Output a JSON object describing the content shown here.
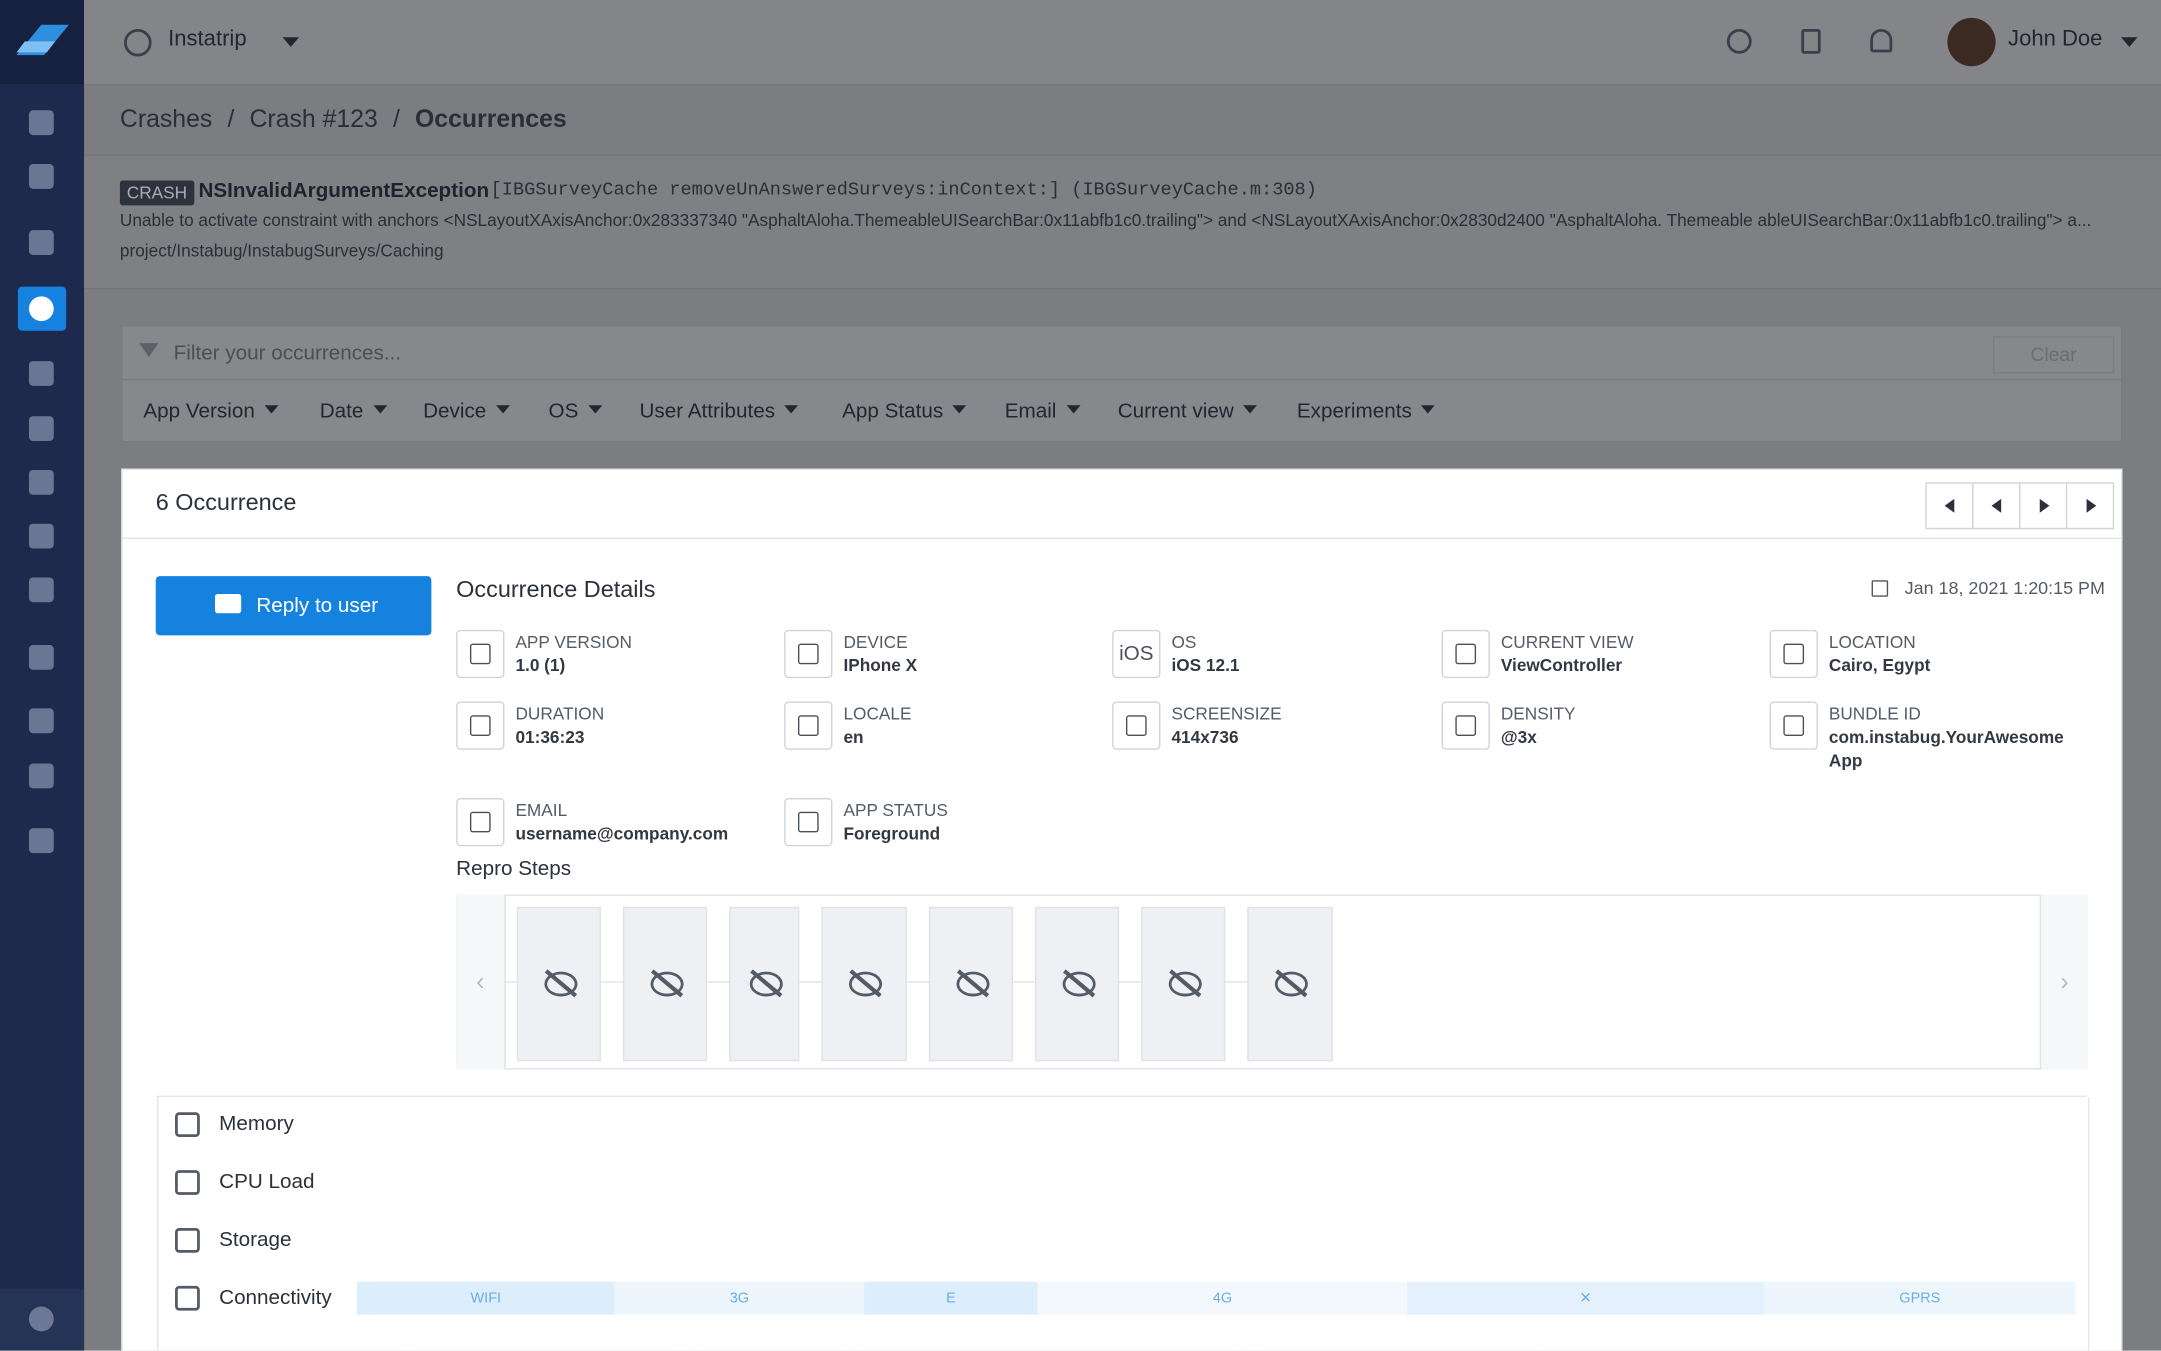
{
  "header": {
    "app": "Instatrip",
    "user": "John Doe"
  },
  "breadcrumb": [
    "Crashes",
    "/",
    "Crash #123",
    "/",
    "Occurrences"
  ],
  "crash": {
    "badge": "CRASH",
    "name": "NSInvalidArgumentException",
    "separator": "·",
    "method": "[IBGSurveyCache removeUnAnsweredSurveys:inContext:] (IBGSurveyCache.m:308)",
    "message": "Unable to activate constraint with anchors <NSLayoutXAxisAnchor:0x283337340 \"AsphaltAloha.ThemeableUISearchBar:0x11abfb1c0.trailing\"> and <NSLayoutXAxisAnchor:0x2830d2400 \"AsphaltAloha. Themeable ableUISearchBar:0x11abfb1c0.trailing\"> a...",
    "path": "project/Instabug/InstabugSurveys/Caching"
  },
  "filter": {
    "placeholder": "Filter your occurrences...",
    "clear": "Clear",
    "options": [
      "App Version",
      "Date",
      "Device",
      "OS",
      "User Attributes",
      "App Status",
      "Email",
      "Current view",
      "Experiments"
    ]
  },
  "panel": {
    "count": "6 Occurrence",
    "reply": "Reply to user",
    "title": "Occurrence Details",
    "date": "Jan 18, 2021 1:20:15 PM",
    "details": [
      {
        "label": "APP VERSION",
        "value": "1.0 (1)"
      },
      {
        "label": "DEVICE",
        "value": "IPhone X"
      },
      {
        "label": "OS",
        "value": "iOS 12.1",
        "icon": "iOS"
      },
      {
        "label": "CURRENT VIEW",
        "value": "ViewController"
      },
      {
        "label": "LOCATION",
        "value": "Cairo, Egypt"
      },
      {
        "label": "DURATION",
        "value": "01:36:23"
      },
      {
        "label": "LOCALE",
        "value": "en"
      },
      {
        "label": "SCREENSIZE",
        "value": "414x736"
      },
      {
        "label": "DENSITY",
        "value": "@3x"
      },
      {
        "label": "BUNDLE ID",
        "value": "com.instabug.YourAwesome App"
      },
      {
        "label": "EMAIL",
        "value": "username@company.com"
      },
      {
        "label": "APP STATUS",
        "value": "Foreground"
      }
    ],
    "repro_title": "Repro Steps",
    "metrics": [
      "Memory",
      "CPU Load",
      "Storage",
      "Connectivity"
    ],
    "connectivity": [
      "WIFI",
      "3G",
      "E",
      "4G",
      "✕",
      "GPRS"
    ]
  }
}
